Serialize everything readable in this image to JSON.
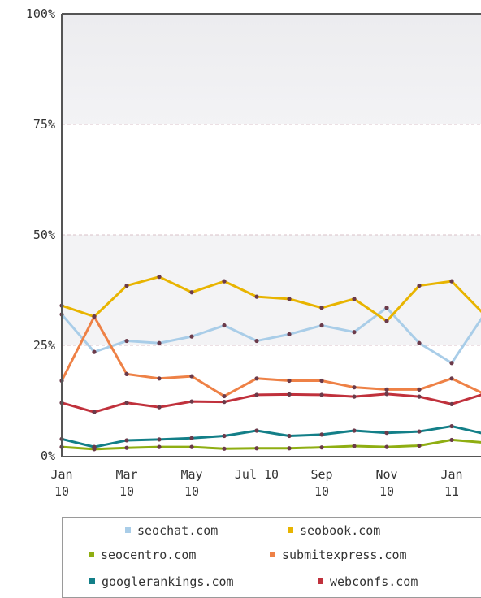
{
  "chart_data": {
    "type": "line",
    "y_axis": {
      "min": 0,
      "max": 100,
      "ticks": [
        0,
        25,
        50,
        75,
        100
      ],
      "tick_labels": [
        "0%",
        "25%",
        "50%",
        "75%",
        "100%"
      ]
    },
    "x_tick_labels": [
      [
        "Jan",
        "10"
      ],
      [
        "Mar",
        "10"
      ],
      [
        "May",
        "10"
      ],
      [
        "Jul 10"
      ],
      [
        "Sep",
        "10"
      ],
      [
        "Nov",
        "10"
      ],
      [
        "Jan",
        "11"
      ]
    ],
    "x": [
      "Jan 10",
      "Feb 10",
      "Mar 10",
      "Apr 10",
      "May 10",
      "Jun 10",
      "Jul 10",
      "Aug 10",
      "Sep 10",
      "Oct 10",
      "Nov 10",
      "Dec 10",
      "Jan 11",
      "Feb 11"
    ],
    "series": [
      {
        "name": "seochat.com",
        "color": "#a9cde8",
        "values": [
          32,
          23.5,
          26,
          25.5,
          27,
          29.5,
          26,
          27.5,
          29.5,
          28,
          33.5,
          25.5,
          21,
          32
        ]
      },
      {
        "name": "seobook.com",
        "color": "#e8b400",
        "values": [
          34,
          31.5,
          38.5,
          40.5,
          37,
          39.5,
          36,
          35.5,
          33.5,
          35.5,
          30.5,
          38.5,
          39.5,
          32
        ]
      },
      {
        "name": "seocentro.com",
        "color": "#8fae12",
        "values": [
          2,
          1.5,
          1.8,
          2,
          2,
          1.6,
          1.7,
          1.7,
          1.9,
          2.2,
          2,
          2.3,
          3.6,
          3
        ]
      },
      {
        "name": "submitexpress.com",
        "color": "#ee8146",
        "values": [
          17,
          31.5,
          18.5,
          17.5,
          18,
          13.5,
          17.5,
          17,
          17,
          15.5,
          15,
          15,
          17.5,
          14
        ]
      },
      {
        "name": "googlerankings.com",
        "color": "#137f88",
        "values": [
          3.8,
          2,
          3.5,
          3.7,
          4,
          4.5,
          5.7,
          4.5,
          4.8,
          5.7,
          5.2,
          5.5,
          6.7,
          5
        ]
      },
      {
        "name": "webconfs.com",
        "color": "#c0313c",
        "values": [
          12,
          9.9,
          12,
          11,
          12.3,
          12.2,
          13.8,
          13.9,
          13.8,
          13.4,
          14,
          13.4,
          11.7,
          14
        ]
      }
    ],
    "legend_position": "bottom",
    "grid": true
  }
}
